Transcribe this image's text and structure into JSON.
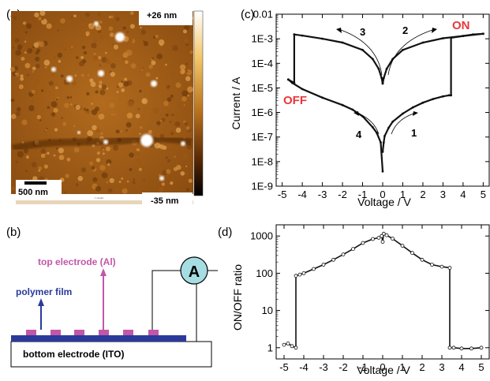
{
  "panels": {
    "a": {
      "label": "(a)",
      "scale_max": "+26 nm",
      "scale_min": "-35 nm",
      "scalebar_label": "500 nm",
      "small_caption": "1 Height"
    },
    "b": {
      "label": "(b)",
      "top_electrode": "top electrode (Al)",
      "polymer_film": "polymer film",
      "bottom_electrode": "bottom electrode (ITO)",
      "meter": "A",
      "colors": {
        "film": "#2b3a9a",
        "electrode": "#c257a8",
        "meter_fill": "#a5dde3",
        "label_blue": "#2b3a9a",
        "label_magenta": "#c257a8"
      }
    },
    "c": {
      "label": "(c)"
    },
    "d": {
      "label": "(d)"
    }
  },
  "chart_data": [
    {
      "type": "line",
      "panel": "c",
      "title": "",
      "xlabel": "Voltage / V",
      "ylabel": "Current / A",
      "xlim": [
        -5.3,
        5.3
      ],
      "ylim": [
        1e-09,
        0.01
      ],
      "yscale": "log",
      "xticks": [
        -5,
        -4,
        -3,
        -2,
        -1,
        0,
        1,
        2,
        3,
        4,
        5
      ],
      "yticks": [
        "1E-9",
        "1E-8",
        "1E-7",
        "1E-6",
        "1E-5",
        "1E-4",
        "1E-3",
        "0.01"
      ],
      "annotations": {
        "on": "ON",
        "off": "OFF",
        "sweep1": "1",
        "sweep2": "2",
        "sweep3": "3",
        "sweep4": "4"
      },
      "colors": {
        "state_text": "#e8373b"
      },
      "series": [
        {
          "x": [
            -4.7,
            -4.5,
            -4,
            -3,
            -2,
            -1.5,
            -1,
            -0.5,
            -0.3,
            -0.1,
            0
          ],
          "y": [
            2.2e-05,
            1.6e-05,
            9e-06,
            4e-06,
            2e-06,
            1.3e-06,
            7e-07,
            2.5e-07,
            1.5e-07,
            6e-08,
            4e-09
          ]
        },
        {
          "x": [
            0,
            0.05,
            0.1,
            0.3,
            0.5,
            1,
            1.5,
            2,
            2.5,
            3,
            3.3,
            3.4
          ],
          "y": [
            2.5e-08,
            6e-08,
            1.1e-07,
            2.4e-07,
            4.2e-07,
            9e-07,
            1.6e-06,
            2.5e-06,
            3.5e-06,
            4.5e-06,
            5e-06,
            5e-06
          ]
        },
        {
          "x": [
            3.4,
            3.4,
            4,
            4.5,
            5
          ],
          "y": [
            5e-06,
            0.0011,
            0.0013,
            0.0015,
            0.0016
          ]
        },
        {
          "x": [
            5,
            4,
            3,
            2,
            1,
            0.5,
            0.2,
            0.05,
            0
          ],
          "y": [
            0.0016,
            0.0013,
            0.00105,
            0.0007,
            0.00035,
            0.00015,
            6e-05,
            2.5e-05,
            1.5e-05
          ]
        },
        {
          "x": [
            0,
            -0.05,
            -0.2,
            -0.5,
            -1,
            -2,
            -3,
            -4,
            -4.4
          ],
          "y": [
            1.5e-05,
            2.5e-05,
            6e-05,
            0.00015,
            0.00035,
            0.0007,
            0.001,
            0.00135,
            0.0015
          ]
        },
        {
          "x": [
            -4.4,
            -4.4,
            -4.7
          ],
          "y": [
            0.0015,
            1.6e-05,
            2.2e-05
          ]
        }
      ]
    },
    {
      "type": "scatter",
      "panel": "d",
      "title": "",
      "xlabel": "Voltage / V",
      "xlabel_printed": "Voltage / V",
      "ylabel": "ON/OFF ratio",
      "xlim": [
        -5.4,
        5.4
      ],
      "ylim": [
        0.5,
        2000
      ],
      "yscale": "log",
      "xticks": [
        -5,
        -4,
        -3,
        -2,
        -1,
        0,
        1,
        2,
        3,
        4,
        5
      ],
      "yticks": [
        "1",
        "10",
        "100",
        "1000"
      ],
      "series": [
        {
          "x": [
            -5,
            -4.8,
            -4.6,
            -4.4,
            -4.4,
            -4.2,
            -4,
            -3.5,
            -3,
            -2.5,
            -2,
            -1.5,
            -1,
            -0.5,
            -0.2,
            -0.05,
            0,
            0.05,
            0.2,
            0.5,
            1,
            1.5,
            2,
            2.5,
            3,
            3.4,
            3.4,
            3.6,
            4,
            4.5,
            5
          ],
          "y": [
            1.2,
            1.3,
            1.1,
            1.0,
            85,
            92,
            100,
            130,
            170,
            230,
            320,
            450,
            650,
            830,
            900,
            1000,
            700,
            1150,
            1050,
            850,
            550,
            350,
            230,
            170,
            150,
            140,
            1.0,
            1.0,
            0.95,
            0.95,
            1.0
          ]
        }
      ]
    }
  ]
}
